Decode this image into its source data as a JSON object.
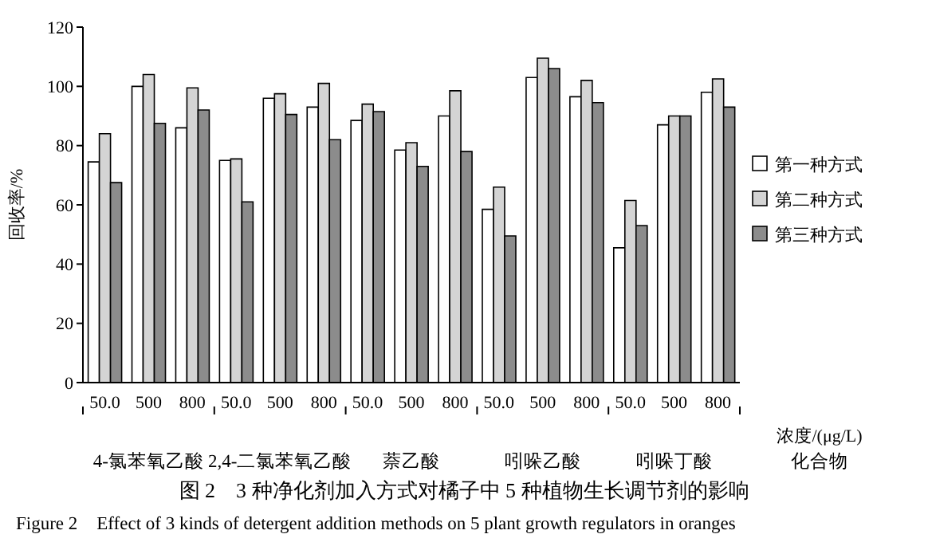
{
  "chart_data": {
    "type": "bar",
    "title": "图 2　3 种净化剂加入方式对橘子中 5 种植物生长调节剂的影响",
    "subtitle": "Figure 2　Effect of 3 kinds of detergent addition methods on 5 plant growth regulators in oranges",
    "ylabel": "回收率/%",
    "categories": [
      "50.0",
      "500",
      "800",
      "50.0",
      "500",
      "800",
      "50.0",
      "500",
      "800",
      "50.0",
      "500",
      "800",
      "50.0",
      "500",
      "800"
    ],
    "series": [
      {
        "name": "第一种方式",
        "color": "#ffffff",
        "values": [
          74.5,
          100,
          86,
          75,
          96,
          93,
          88.5,
          78.5,
          90,
          58.5,
          103,
          96.5,
          45.5,
          87,
          98
        ]
      },
      {
        "name": "第二种方式",
        "color": "#d4d4d4",
        "values": [
          84,
          104,
          99.5,
          75.5,
          97.5,
          101,
          94,
          81,
          98.5,
          66,
          109.5,
          102,
          61.5,
          90,
          102.5
        ]
      },
      {
        "name": "第三种方式",
        "color": "#8c8c8c",
        "values": [
          67.5,
          87.5,
          92,
          61,
          90.5,
          82,
          91.5,
          73,
          78,
          49.5,
          106,
          94.5,
          53,
          90,
          93
        ]
      }
    ],
    "annotations": [
      "4-氯苯氧乙酸",
      "2,4-二氯苯氧乙酸",
      "萘乙酸",
      "吲哚乙酸",
      "吲哚丁酸",
      "浓度/(μg/L)",
      "化合物"
    ],
    "ylim": [
      0,
      120
    ],
    "yticks": [
      0,
      20,
      40,
      60,
      80,
      100,
      120
    ],
    "legend": "right"
  }
}
